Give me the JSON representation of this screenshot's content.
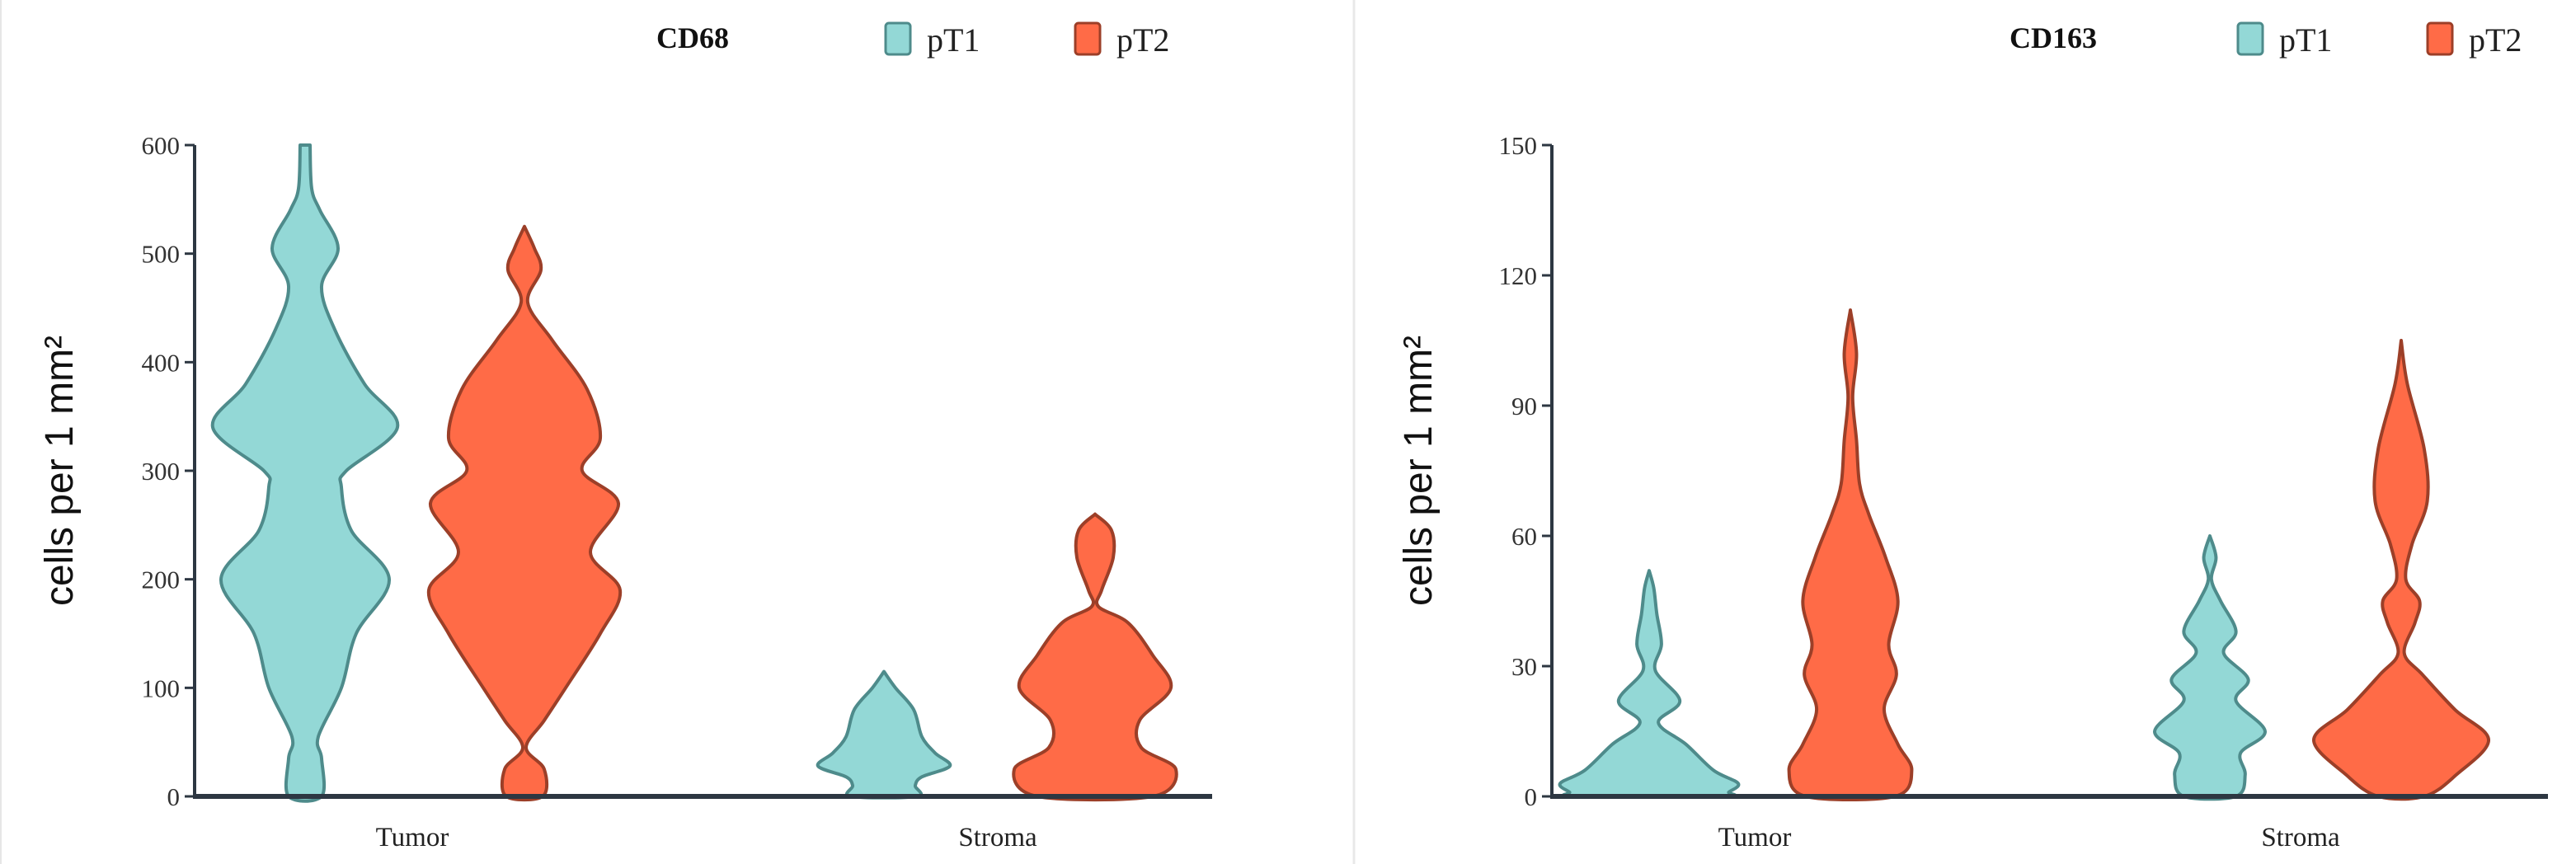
{
  "colors": {
    "pT1_fill": "#93d8d6",
    "pT1_stroke": "#4e8b8b",
    "pT2_fill": "#ff6b47",
    "pT2_stroke": "#9c3f28",
    "axis": "#2d3742"
  },
  "chart_data": [
    {
      "type": "violin",
      "title": "CD68",
      "ylabel": "cells per 1 mm²",
      "xlabel": "",
      "ylim": [
        0,
        600
      ],
      "yticks": [
        "0",
        "100",
        "200",
        "300",
        "400",
        "500",
        "600"
      ],
      "categories": [
        "Tumor",
        "Stroma"
      ],
      "legend": [
        "pT1",
        "pT2"
      ],
      "legend_position": "top-right",
      "series": [
        {
          "name": "pT1",
          "profiles": [
            [
              [
                600,
                6
              ],
              [
                560,
                8
              ],
              [
                540,
                18
              ],
              [
                505,
                40
              ],
              [
                470,
                20
              ],
              [
                430,
                36
              ],
              [
                380,
                72
              ],
              [
                340,
                112
              ],
              [
                300,
                50
              ],
              [
                285,
                44
              ],
              [
                245,
                56
              ],
              [
                200,
                102
              ],
              [
                150,
                62
              ],
              [
                100,
                44
              ],
              [
                55,
                16
              ],
              [
                35,
                20
              ],
              [
                0,
                20
              ]
            ],
            [
              [
                115,
                0
              ],
              [
                100,
                14
              ],
              [
                80,
                36
              ],
              [
                55,
                46
              ],
              [
                40,
                62
              ],
              [
                28,
                80
              ],
              [
                18,
                46
              ],
              [
                10,
                38
              ],
              [
                0,
                40
              ]
            ]
          ]
        },
        {
          "name": "pT2",
          "profiles": [
            [
              [
                525,
                0
              ],
              [
                505,
                12
              ],
              [
                485,
                20
              ],
              [
                455,
                4
              ],
              [
                420,
                34
              ],
              [
                375,
                76
              ],
              [
                330,
                92
              ],
              [
                300,
                70
              ],
              [
                270,
                114
              ],
              [
                225,
                80
              ],
              [
                190,
                116
              ],
              [
                150,
                92
              ],
              [
                100,
                50
              ],
              [
                70,
                24
              ],
              [
                45,
                2
              ],
              [
                25,
                24
              ],
              [
                0,
                22
              ]
            ],
            [
              [
                260,
                0
              ],
              [
                245,
                20
              ],
              [
                220,
                22
              ],
              [
                190,
                8
              ],
              [
                175,
                4
              ],
              [
                160,
                40
              ],
              [
                130,
                70
              ],
              [
                100,
                92
              ],
              [
                70,
                54
              ],
              [
                45,
                56
              ],
              [
                25,
                98
              ],
              [
                0,
                70
              ]
            ]
          ]
        }
      ]
    },
    {
      "type": "violin",
      "title": "CD163",
      "ylabel": "cells per 1 mm²",
      "xlabel": "",
      "ylim": [
        0,
        150
      ],
      "yticks": [
        "0",
        "30",
        "60",
        "90",
        "120",
        "150"
      ],
      "categories": [
        "Tumor",
        "Stroma"
      ],
      "legend": [
        "pT1",
        "pT2"
      ],
      "legend_position": "top-right",
      "series": [
        {
          "name": "pT1",
          "profiles": [
            [
              [
                52,
                0
              ],
              [
                48,
                6
              ],
              [
                42,
                10
              ],
              [
                35,
                16
              ],
              [
                29,
                8
              ],
              [
                22,
                40
              ],
              [
                17,
                12
              ],
              [
                12,
                48
              ],
              [
                6,
                84
              ],
              [
                3,
                116
              ],
              [
                1,
                104
              ],
              [
                0,
                96
              ]
            ],
            [
              [
                60,
                0
              ],
              [
                55,
                8
              ],
              [
                50,
                2
              ],
              [
                45,
                14
              ],
              [
                38,
                34
              ],
              [
                33,
                18
              ],
              [
                27,
                50
              ],
              [
                22,
                34
              ],
              [
                15,
                72
              ],
              [
                10,
                40
              ],
              [
                5,
                46
              ],
              [
                0,
                34
              ]
            ]
          ]
        },
        {
          "name": "pT2",
          "profiles": [
            [
              [
                112,
                0
              ],
              [
                102,
                8
              ],
              [
                92,
                3
              ],
              [
                82,
                8
              ],
              [
                72,
                12
              ],
              [
                65,
                24
              ],
              [
                55,
                46
              ],
              [
                45,
                62
              ],
              [
                35,
                50
              ],
              [
                28,
                60
              ],
              [
                20,
                44
              ],
              [
                12,
                62
              ],
              [
                6,
                80
              ],
              [
                0,
                58
              ]
            ],
            [
              [
                105,
                0
              ],
              [
                95,
                8
              ],
              [
                80,
                30
              ],
              [
                68,
                34
              ],
              [
                58,
                14
              ],
              [
                50,
                6
              ],
              [
                45,
                24
              ],
              [
                40,
                18
              ],
              [
                33,
                4
              ],
              [
                28,
                28
              ],
              [
                20,
                70
              ],
              [
                13,
                114
              ],
              [
                5,
                72
              ],
              [
                0,
                30
              ]
            ]
          ]
        }
      ]
    }
  ]
}
